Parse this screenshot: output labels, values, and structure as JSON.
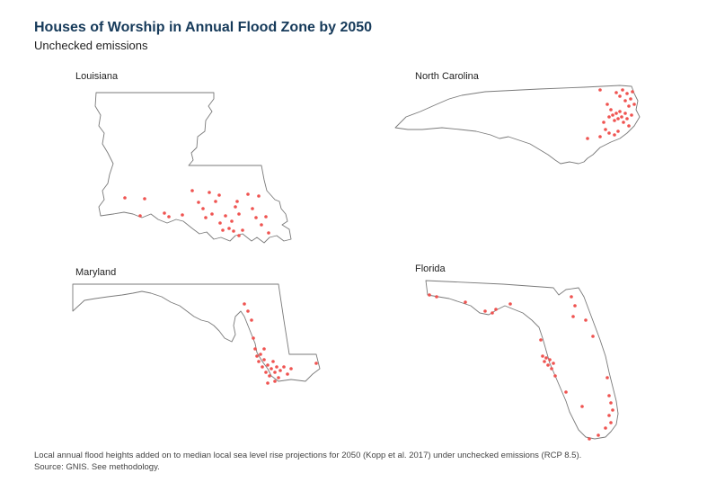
{
  "header": {
    "title": "Houses of Worship in Annual Flood Zone by 2050",
    "subtitle": "Unchecked emissions"
  },
  "colors": {
    "point": "#ef5350",
    "outline": "#7a7a7a",
    "title": "#163a5a"
  },
  "panels": [
    {
      "label": "Louisiana"
    },
    {
      "label": "North Carolina"
    },
    {
      "label": "Maryland"
    },
    {
      "label": "Florida"
    }
  ],
  "footer": {
    "note": "Local annual flood heights added on to median local sea level rise projections for 2050 (Kopp et al. 2017) under unchecked emissions (RCP 8.5).",
    "source": "Source: GNIS. See methodology."
  }
}
